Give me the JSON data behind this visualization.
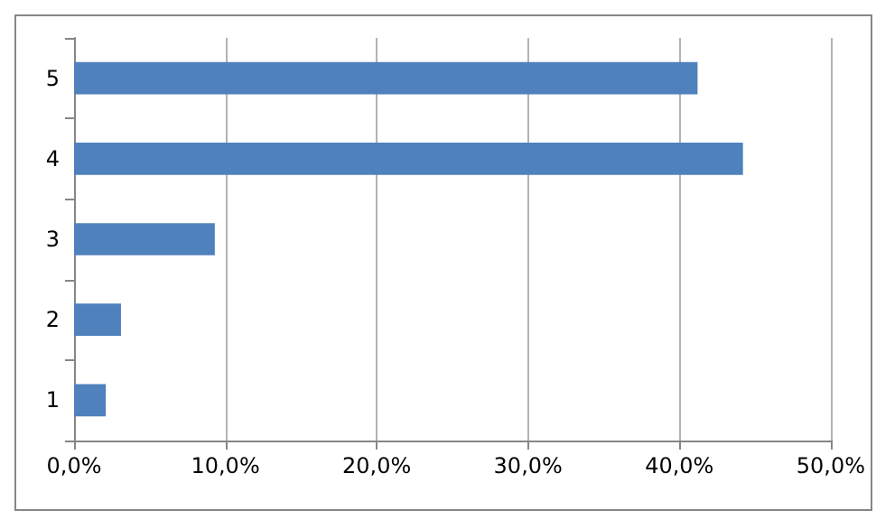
{
  "chart_data": {
    "type": "bar",
    "orientation": "horizontal",
    "categories": [
      "5",
      "4",
      "3",
      "2",
      "1"
    ],
    "values": [
      41.2,
      44.2,
      9.3,
      3.1,
      2.1
    ],
    "color": "#4f81bd",
    "xlim": [
      0,
      50
    ],
    "xticks": [
      {
        "value": 0,
        "label": "0,0%"
      },
      {
        "value": 10,
        "label": "10,0%"
      },
      {
        "value": 20,
        "label": "20,0%"
      },
      {
        "value": 30,
        "label": "30,0%"
      },
      {
        "value": 40,
        "label": "40,0%"
      },
      {
        "value": 50,
        "label": "50,0%"
      }
    ],
    "grid": "x"
  }
}
